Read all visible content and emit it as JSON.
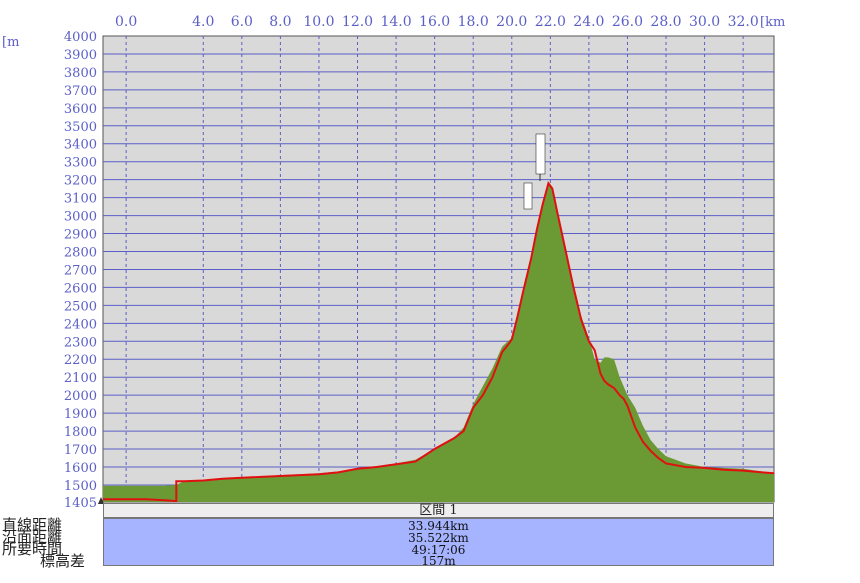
{
  "chart_data": {
    "type": "area",
    "xunit": "[km",
    "yunit": "[m",
    "x_ticks": [
      "0.0",
      "4.0",
      "6.0",
      "8.0",
      "10.0",
      "12.0",
      "14.0",
      "16.0",
      "18.0",
      "20.0",
      "22.0",
      "24.0",
      "26.0",
      "28.0",
      "30.0",
      "32.0"
    ],
    "x_tick_values": [
      0,
      4,
      6,
      8,
      10,
      12,
      14,
      16,
      18,
      20,
      22,
      24,
      26,
      28,
      30,
      32
    ],
    "y_ticks": [
      4000,
      3900,
      3800,
      3700,
      3600,
      3500,
      3400,
      3300,
      3200,
      3100,
      3000,
      2900,
      2800,
      2700,
      2600,
      2500,
      2400,
      2300,
      2200,
      2100,
      2000,
      1900,
      1800,
      1700,
      1600,
      1500,
      1405
    ],
    "xlim": [
      -1.2,
      33.6
    ],
    "ylim": [
      1405,
      4000
    ],
    "grid": true,
    "colors": {
      "plot_bg": "#d9d9d9",
      "fill": "#6b9a35",
      "route": "#e01010",
      "grid": "#5b5fc7"
    },
    "series": [
      {
        "role": "terrain-fill",
        "x": [
          -1.2,
          0.0,
          1.0,
          2.0,
          2.6,
          3.0,
          4.0,
          5.0,
          6.0,
          7.0,
          8.0,
          9.0,
          10.0,
          11.0,
          12.0,
          13.0,
          14.0,
          15.0,
          16.0,
          17.0,
          17.5,
          18.0,
          18.5,
          19.0,
          19.5,
          19.8,
          20.0,
          20.3,
          20.6,
          21.0,
          21.3,
          21.6,
          21.9,
          22.1,
          22.4,
          22.8,
          23.2,
          23.6,
          24.0,
          24.3,
          24.6,
          24.8,
          25.0,
          25.3,
          25.6,
          25.8,
          26.0,
          26.4,
          26.8,
          27.2,
          27.6,
          28.0,
          28.5,
          29.0,
          30.0,
          31.0,
          32.0,
          33.0,
          33.6
        ],
        "y": [
          1495,
          1495,
          1495,
          1495,
          1500,
          1520,
          1525,
          1535,
          1540,
          1545,
          1555,
          1560,
          1565,
          1575,
          1590,
          1605,
          1620,
          1640,
          1700,
          1760,
          1820,
          1950,
          2050,
          2150,
          2270,
          2300,
          2320,
          2460,
          2600,
          2780,
          2930,
          3080,
          3180,
          3160,
          3000,
          2800,
          2620,
          2440,
          2320,
          2200,
          2180,
          2210,
          2210,
          2200,
          2100,
          2050,
          2000,
          1930,
          1830,
          1750,
          1700,
          1660,
          1640,
          1620,
          1600,
          1595,
          1590,
          1575,
          1560
        ]
      },
      {
        "role": "route",
        "x": [
          -1.2,
          0.0,
          1.0,
          2.0,
          2.6,
          2.6,
          3.0,
          4.0,
          5.0,
          6.0,
          7.0,
          8.0,
          9.0,
          10.0,
          11.0,
          12.0,
          13.0,
          14.0,
          15.0,
          16.0,
          17.0,
          17.5,
          18.0,
          18.5,
          19.0,
          19.5,
          19.8,
          20.0,
          20.3,
          20.6,
          21.0,
          21.3,
          21.6,
          21.9,
          22.1,
          22.4,
          22.8,
          23.2,
          23.6,
          24.0,
          24.3,
          24.6,
          24.8,
          25.0,
          25.3,
          25.6,
          25.8,
          26.0,
          26.4,
          26.8,
          27.2,
          27.6,
          28.0,
          28.5,
          29.0,
          30.0,
          31.0,
          32.0,
          33.0,
          33.6
        ],
        "y": [
          1420,
          1420,
          1420,
          1415,
          1410,
          1520,
          1520,
          1525,
          1535,
          1540,
          1545,
          1550,
          1555,
          1560,
          1570,
          1590,
          1600,
          1615,
          1630,
          1700,
          1760,
          1800,
          1930,
          2000,
          2100,
          2240,
          2280,
          2310,
          2440,
          2580,
          2760,
          2920,
          3060,
          3180,
          3150,
          3000,
          2800,
          2600,
          2420,
          2300,
          2250,
          2120,
          2080,
          2060,
          2040,
          2000,
          1980,
          1940,
          1820,
          1740,
          1690,
          1650,
          1620,
          1610,
          1600,
          1595,
          1585,
          1580,
          1570,
          1565
        ]
      }
    ]
  },
  "summary": {
    "section_label": "区間 1",
    "rows": [
      {
        "label": "直線距離",
        "value": "33.944km"
      },
      {
        "label": "沿面距離",
        "value": "35.522km"
      },
      {
        "label": "所要時間",
        "value": "49:17:06"
      },
      {
        "label": "標高差",
        "value": "157m"
      }
    ]
  }
}
